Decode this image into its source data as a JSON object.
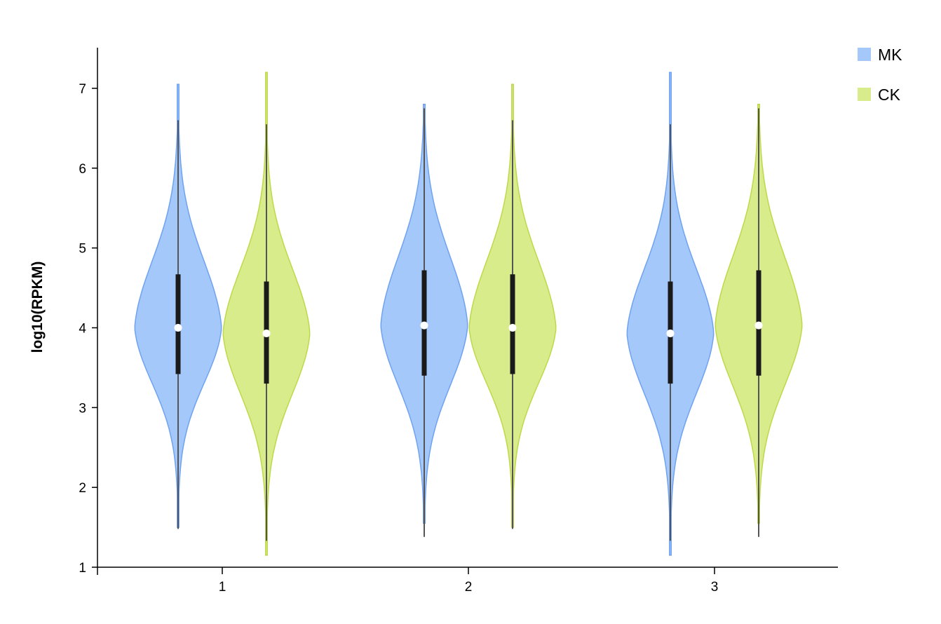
{
  "chart_data": {
    "type": "violin",
    "title": "",
    "xlabel": "",
    "ylabel": "log10(RPKM)",
    "ylim": [
      1,
      7.5
    ],
    "yticks": [
      1,
      2,
      3,
      4,
      5,
      6,
      7
    ],
    "categories": [
      "1",
      "2",
      "3"
    ],
    "legend_position": "top-right",
    "series": [
      {
        "name": "MK",
        "color": "#a4c8fa",
        "stroke": "#6fa2f0",
        "groups": [
          {
            "category": "1",
            "min": 1.5,
            "max": 7.05,
            "whisker_low": 1.48,
            "whisker_high": 6.6,
            "q1": 3.42,
            "q3": 4.67,
            "median": 4.0
          },
          {
            "category": "2",
            "min": 1.55,
            "max": 6.8,
            "whisker_low": 1.38,
            "whisker_high": 6.75,
            "q1": 3.4,
            "q3": 4.72,
            "median": 4.03
          },
          {
            "category": "3",
            "min": 1.15,
            "max": 7.2,
            "whisker_low": 1.33,
            "whisker_high": 6.55,
            "q1": 3.3,
            "q3": 4.58,
            "median": 3.93
          }
        ]
      },
      {
        "name": "CK",
        "color": "#d9ec8c",
        "stroke": "#bcd94a",
        "groups": [
          {
            "category": "1",
            "min": 1.15,
            "max": 7.2,
            "whisker_low": 1.33,
            "whisker_high": 6.55,
            "q1": 3.3,
            "q3": 4.58,
            "median": 3.93
          },
          {
            "category": "2",
            "min": 1.5,
            "max": 7.05,
            "whisker_low": 1.48,
            "whisker_high": 6.6,
            "q1": 3.42,
            "q3": 4.67,
            "median": 4.0
          },
          {
            "category": "3",
            "min": 1.55,
            "max": 6.8,
            "whisker_low": 1.38,
            "whisker_high": 6.75,
            "q1": 3.4,
            "q3": 4.72,
            "median": 4.03
          }
        ]
      }
    ]
  }
}
